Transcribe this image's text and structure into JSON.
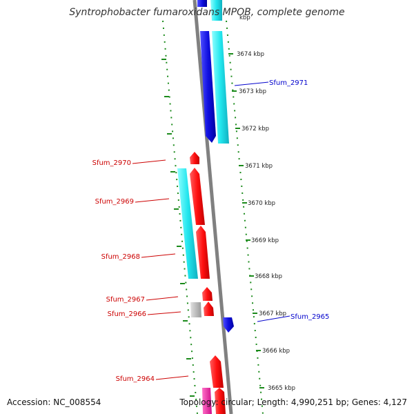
{
  "title": "Syntrophobacter fumaroxidans MPOB, complete genome",
  "title_overlap_text": "kbp",
  "accession": "Accession: NC_008554",
  "topology": "Topology: circular; Length: 4,990,251 bp; Genes: 4,127",
  "colors": {
    "forward_gene": "#ff1111",
    "reverse_gene": "#1010e0",
    "rna_gene": "#22e6ee",
    "other_gene": "#bbbbbb",
    "pink_gene": "#ff2aa8",
    "backbone": "#808080",
    "scale_ticks": "#1a8a1a",
    "label_forward": "#cc0000",
    "label_reverse": "#0000cc"
  },
  "scale": {
    "labels": [
      "3674 kbp",
      "3673 kbp",
      "3672 kbp",
      "3671 kbp",
      "3670 kbp",
      "3669 kbp",
      "3668 kbp",
      "3667 kbp",
      "3666 kbp",
      "3665 kbp"
    ]
  },
  "gene_labels": {
    "left": [
      "Sfum_2970",
      "Sfum_2969",
      "Sfum_2968",
      "Sfum_2967",
      "Sfum_2966",
      "Sfum_2964"
    ],
    "right": [
      "Sfum_2971",
      "Sfum_2965"
    ]
  }
}
